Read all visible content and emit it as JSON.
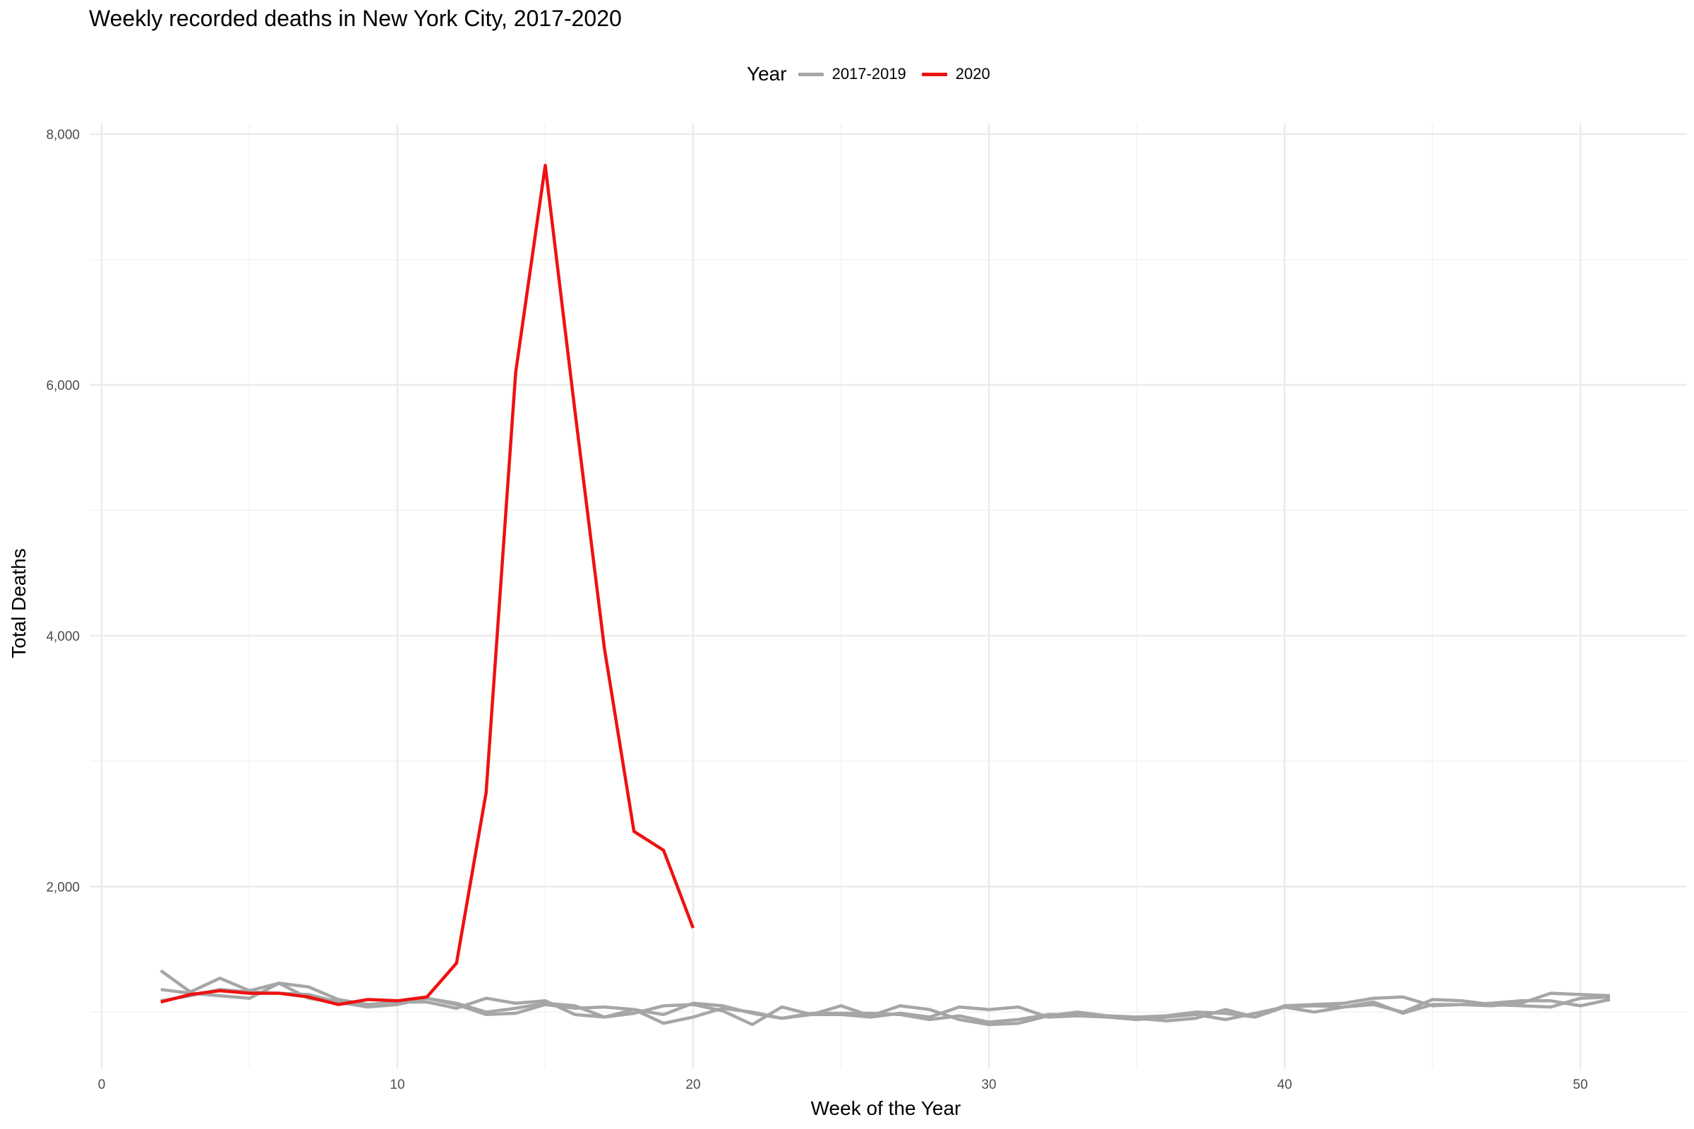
{
  "chart_data": {
    "type": "line",
    "title": "Weekly recorded deaths in New York City, 2017-2020",
    "xlabel": "Week of the Year",
    "ylabel": "Total Deaths",
    "xlim": [
      0,
      53
    ],
    "ylim": [
      600,
      8100
    ],
    "x_ticks": [
      0,
      10,
      20,
      30,
      40,
      50
    ],
    "y_ticks": [
      2000,
      4000,
      6000,
      8000
    ],
    "grid": true,
    "legend": {
      "title": "Year",
      "placement": "top",
      "entries": [
        {
          "label": "2017-2019",
          "color": "#A6A6A6"
        },
        {
          "label": "2020",
          "color": "#EE1111"
        }
      ]
    },
    "series": [
      {
        "group": "2017-2019",
        "color": "#A6A6A6",
        "x": [
          2,
          3,
          4,
          5,
          6,
          7,
          8,
          9,
          10,
          11,
          12,
          13,
          14,
          15,
          16,
          17,
          18,
          19,
          20,
          21,
          22,
          23,
          24,
          25,
          26,
          27,
          28,
          29,
          30,
          31,
          32,
          33,
          34,
          35,
          36,
          37,
          38,
          39,
          40,
          41,
          42,
          43,
          44,
          45,
          46,
          47,
          48,
          49,
          50,
          51
        ],
        "values": [
          1330,
          1160,
          1270,
          1170,
          1230,
          1200,
          1100,
          1060,
          1070,
          1110,
          1070,
          1000,
          1030,
          1070,
          1050,
          960,
          990,
          1050,
          1060,
          1010,
          900,
          1040,
          980,
          1050,
          970,
          1050,
          1020,
          940,
          900,
          910,
          970,
          1000,
          970,
          950,
          930,
          950,
          1020,
          960,
          1050,
          1060,
          1070,
          1110,
          1120,
          1050,
          1060,
          1050,
          1070,
          1150,
          1140,
          1130
        ]
      },
      {
        "group": "2017-2019",
        "color": "#A6A6A6",
        "x": [
          2,
          3,
          4,
          5,
          6,
          7,
          8,
          9,
          10,
          11,
          12,
          13,
          14,
          15,
          16,
          17,
          18,
          19,
          20,
          21,
          22,
          23,
          24,
          25,
          26,
          27,
          28,
          29,
          30,
          31,
          32,
          33,
          34,
          35,
          36,
          37,
          38,
          39,
          40,
          41,
          42,
          43,
          44,
          45,
          46,
          47,
          48,
          49,
          50,
          51
        ],
        "values": [
          1180,
          1150,
          1130,
          1110,
          1230,
          1110,
          1070,
          1060,
          1080,
          1080,
          1030,
          1110,
          1070,
          1090,
          980,
          960,
          1020,
          980,
          1070,
          1050,
          990,
          950,
          980,
          980,
          960,
          990,
          960,
          1040,
          1020,
          1040,
          960,
          970,
          960,
          940,
          960,
          980,
          940,
          990,
          1040,
          1000,
          1040,
          1060,
          1000,
          1100,
          1090,
          1060,
          1050,
          1040,
          1110,
          1120
        ]
      },
      {
        "group": "2017-2019",
        "color": "#A6A6A6",
        "x": [
          2,
          3,
          4,
          5,
          6,
          7,
          8,
          9,
          10,
          11,
          12,
          13,
          14,
          15,
          16,
          17,
          18,
          19,
          20,
          21,
          22,
          23,
          24,
          25,
          26,
          27,
          28,
          29,
          30,
          31,
          32,
          33,
          34,
          35,
          36,
          37,
          38,
          39,
          40,
          41,
          42,
          43,
          44,
          45,
          46,
          47,
          48,
          49,
          50,
          51
        ],
        "values": [
          1090,
          1130,
          1180,
          1160,
          1150,
          1140,
          1080,
          1040,
          1060,
          1110,
          1060,
          980,
          990,
          1060,
          1030,
          1040,
          1020,
          910,
          960,
          1030,
          1000,
          950,
          990,
          990,
          990,
          980,
          940,
          970,
          920,
          940,
          980,
          980,
          970,
          960,
          970,
          1000,
          990,
          960,
          1040,
          1050,
          1040,
          1080,
          990,
          1060,
          1060,
          1070,
          1090,
          1090,
          1050,
          1100
        ]
      },
      {
        "group": "2020",
        "color": "#EE1111",
        "x": [
          2,
          3,
          4,
          5,
          6,
          7,
          8,
          9,
          10,
          11,
          12,
          13,
          14,
          15,
          16,
          17,
          18,
          19,
          20
        ],
        "values": [
          1080,
          1140,
          1170,
          1150,
          1150,
          1120,
          1060,
          1100,
          1090,
          1120,
          1390,
          2750,
          6100,
          7750,
          5800,
          3900,
          2440,
          2290,
          1670
        ]
      }
    ]
  }
}
